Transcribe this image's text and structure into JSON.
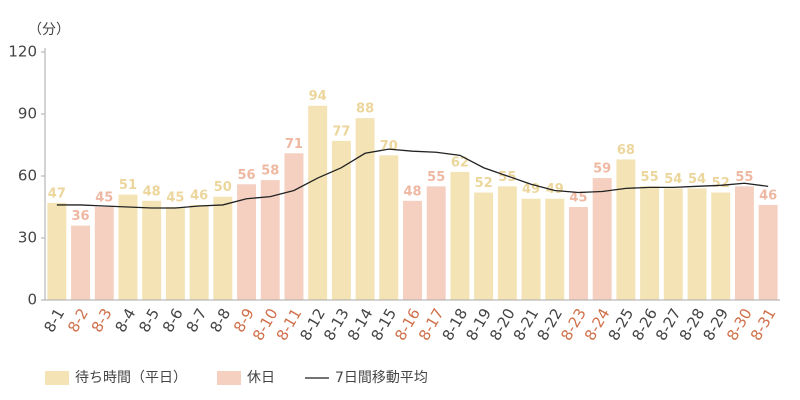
{
  "chart_data": {
    "type": "bar",
    "y_unit": "（分）",
    "categories": [
      "8-1",
      "8-2",
      "8-3",
      "8-4",
      "8-5",
      "8-6",
      "8-7",
      "8-8",
      "8-9",
      "8-10",
      "8-11",
      "8-12",
      "8-13",
      "8-14",
      "8-15",
      "8-16",
      "8-17",
      "8-18",
      "8-19",
      "8-20",
      "8-21",
      "8-22",
      "8-23",
      "8-24",
      "8-25",
      "8-26",
      "8-27",
      "8-28",
      "8-29",
      "8-30",
      "8-31"
    ],
    "series": [
      {
        "name": "待ち時間（平日）",
        "type": "bar",
        "color": "#f3e3b5",
        "label_color": "#ecd69c",
        "values": [
          47,
          null,
          null,
          51,
          48,
          45,
          46,
          50,
          null,
          null,
          null,
          94,
          77,
          88,
          70,
          null,
          null,
          62,
          52,
          55,
          49,
          49,
          null,
          null,
          68,
          55,
          54,
          54,
          52,
          null,
          null
        ]
      },
      {
        "name": "休日",
        "type": "bar",
        "color": "#f5d0c1",
        "label_color": "#efb8a2",
        "category_color": "#d0704a",
        "values": [
          null,
          36,
          45,
          null,
          null,
          null,
          null,
          null,
          56,
          58,
          71,
          null,
          null,
          null,
          null,
          48,
          55,
          null,
          null,
          null,
          null,
          null,
          45,
          59,
          null,
          null,
          null,
          null,
          null,
          55,
          46
        ]
      },
      {
        "name": "7日間移動平均",
        "type": "line",
        "color": "#222",
        "values": [
          46,
          46,
          45.5,
          45,
          44.5,
          44.5,
          45.5,
          46,
          49,
          50,
          53,
          59,
          64,
          71,
          73,
          72,
          71.5,
          70,
          64,
          60,
          56,
          53,
          52,
          52.5,
          54,
          54.5,
          54.5,
          55,
          55.5,
          56.5,
          55
        ]
      }
    ],
    "ylim": [
      0,
      120
    ],
    "yticks": [
      0,
      30,
      60,
      90,
      120
    ],
    "grid": false
  }
}
